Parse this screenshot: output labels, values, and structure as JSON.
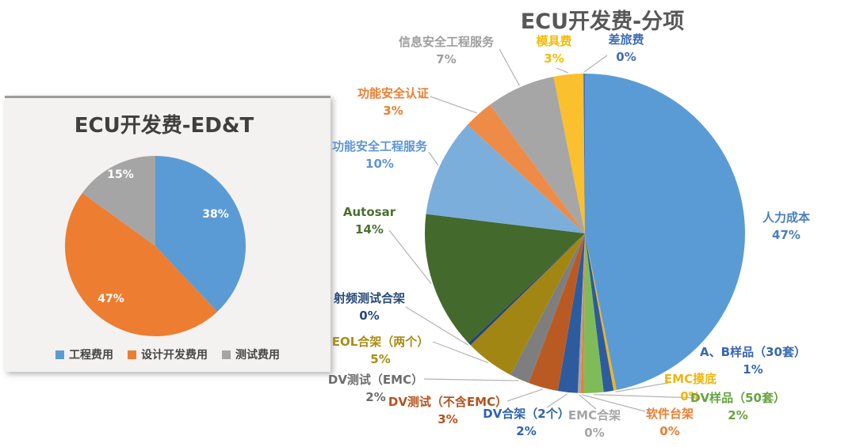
{
  "chart_data": [
    {
      "type": "pie",
      "title": "ECU开发费-ED&T",
      "categories": [
        "工程费用",
        "设计开发费用",
        "测试费用"
      ],
      "values": [
        38,
        47,
        15
      ],
      "slice_labels": [
        "38%",
        "47%",
        "15%"
      ],
      "colors": [
        "#5B9BD5",
        "#ED7D31",
        "#A5A5A5"
      ],
      "value_label_color": "#ffffff",
      "legend_position": "bottom",
      "start_angle_deg": 0,
      "direction": "clockwise"
    },
    {
      "type": "pie",
      "title": "ECU开发费-分项",
      "categories": [
        "人力成本",
        "EMC摸底",
        "A、B样品（30套）",
        "DV样品（50套）",
        "软件台架",
        "EMC合架",
        "DV合架（2个）",
        "DV测试（不含EMC）",
        "DV测试（EMC）",
        "EOL合架（两个）",
        "射频测试合架",
        "Autosar",
        "功能安全工程服务",
        "功能安全认证",
        "信息安全工程服务",
        "模具费",
        "差旅费"
      ],
      "values": [
        47,
        0,
        1,
        2,
        0,
        0,
        2,
        3,
        2,
        5,
        0,
        14,
        10,
        3,
        7,
        3,
        0
      ],
      "slice_labels": [
        "47%",
        "0%",
        "1%",
        "2%",
        "0%",
        "0%",
        "2%",
        "3%",
        "2%",
        "5%",
        "0%",
        "14%",
        "10%",
        "3%",
        "7%",
        "3%",
        "0%"
      ],
      "colors": [
        "#5B9BD5",
        "#F0B41E",
        "#2D5C9E",
        "#7FBC59",
        "#ED7D31",
        "#A5A5A5",
        "#2D5C9E",
        "#B95A23",
        "#7E7E7E",
        "#A28613",
        "#264478",
        "#44692C",
        "#7CAEDB",
        "#EE8B47",
        "#A6A6A6",
        "#FBC02D",
        "#4472C4"
      ],
      "label_colors": [
        "#4A7EBE",
        "#F2B50C",
        "#3767B1",
        "#67A33E",
        "#ED7D31",
        "#A5A5A5",
        "#2E63AC",
        "#B5521D",
        "#6D6D6D",
        "#A98C13",
        "#27497B",
        "#4A7030",
        "#5E95D3",
        "#ED7D31",
        "#9E9E9E",
        "#F5BC00",
        "#3E6CB5"
      ],
      "leader_line_color": "#b3b3b3",
      "legend_position": "none",
      "start_angle_deg": 0,
      "direction": "clockwise"
    }
  ]
}
